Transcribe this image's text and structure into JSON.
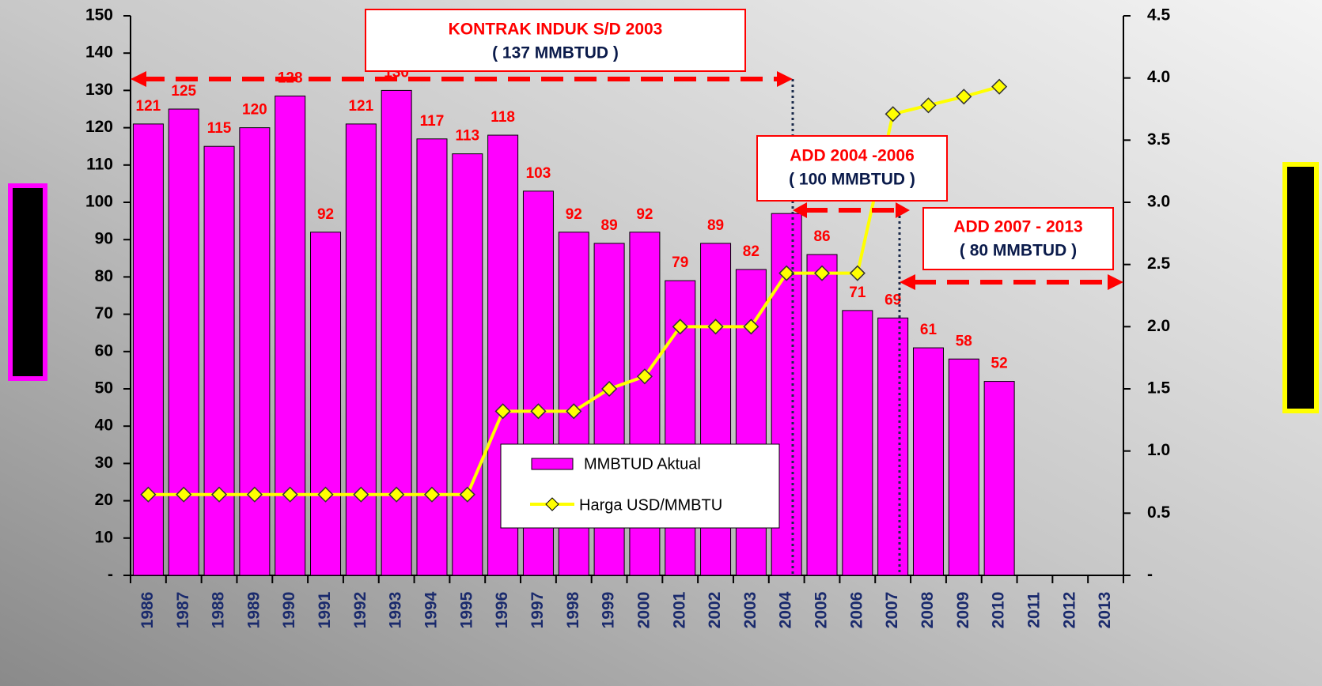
{
  "chart_data": {
    "type": "bar_line",
    "categories": [
      "1986",
      "1987",
      "1988",
      "1989",
      "1990",
      "1991",
      "1992",
      "1993",
      "1994",
      "1995",
      "1996",
      "1997",
      "1998",
      "1999",
      "2000",
      "2001",
      "2002",
      "2003",
      "2004",
      "2005",
      "2006",
      "2007",
      "2008",
      "2009",
      "2010",
      "2011",
      "2012",
      "2013"
    ],
    "series": [
      {
        "name": "MMBTUD Aktual",
        "type": "bar",
        "color": "#ff00ff",
        "values": [
          121,
          125,
          115,
          120,
          128.5,
          92,
          121,
          130,
          117,
          113,
          118,
          103,
          92,
          89,
          92,
          79,
          89,
          82,
          97,
          86,
          71,
          69,
          61,
          58,
          52,
          null,
          null,
          null
        ],
        "value_labels": [
          "121",
          "125",
          "115",
          "120",
          "128",
          "92",
          "121",
          "130",
          "117",
          "113",
          "118",
          "103",
          "92",
          "89",
          "92",
          "79",
          "89",
          "82",
          null,
          "86",
          "71",
          "69",
          "61",
          "58",
          "52",
          null,
          null,
          null
        ]
      },
      {
        "name": "Harga USD/MMBTU",
        "type": "line",
        "axis": "y2",
        "color": "#ffff00",
        "values": [
          0.65,
          0.65,
          0.65,
          0.65,
          0.65,
          0.65,
          0.65,
          0.65,
          0.65,
          0.65,
          1.32,
          1.32,
          1.32,
          1.5,
          1.6,
          2.0,
          2.0,
          2.0,
          2.43,
          2.43,
          2.43,
          3.71,
          3.78,
          3.85,
          3.93,
          null,
          null,
          null
        ]
      }
    ],
    "ylim": [
      0,
      150
    ],
    "yticks": [
      {
        "value": 0,
        "label": "-"
      },
      10,
      20,
      30,
      40,
      50,
      60,
      70,
      80,
      90,
      100,
      110,
      120,
      130,
      140,
      150
    ],
    "y2lim": [
      0,
      4.5
    ],
    "y2ticks": [
      {
        "value": 0,
        "label": "-"
      },
      0.5,
      {
        "value": 1,
        "label": "1.0"
      },
      1.5,
      {
        "value": 2,
        "label": "2.0"
      },
      2.5,
      {
        "value": 3,
        "label": "3.0"
      },
      3.5,
      {
        "value": 4,
        "label": "4.0"
      },
      4.5
    ],
    "annotations": [
      {
        "title": "KONTRAK INDUK S/D 2003",
        "text": "( 137 MMBTUD )"
      },
      {
        "title": "ADD 2004 -2006",
        "text": "( 100 MMBTUD )"
      },
      {
        "title": "ADD 2007 - 2013",
        "text": "( 80 MMBTUD )"
      }
    ]
  }
}
